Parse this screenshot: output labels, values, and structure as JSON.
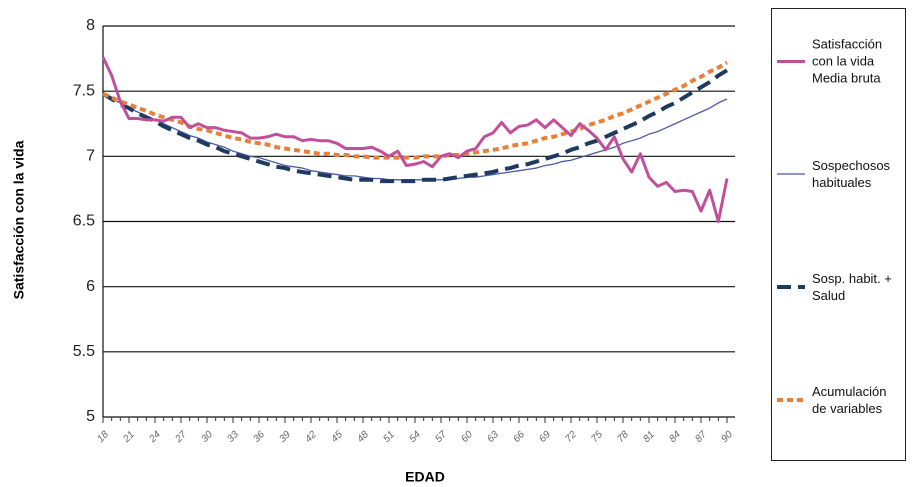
{
  "chart_data": {
    "type": "line",
    "x_label": "EDAD",
    "y_label": "Satisfacción con la vida",
    "x": [
      18,
      19,
      20,
      21,
      22,
      23,
      24,
      25,
      26,
      27,
      28,
      29,
      30,
      31,
      32,
      33,
      34,
      35,
      36,
      37,
      38,
      39,
      40,
      41,
      42,
      43,
      44,
      45,
      46,
      47,
      48,
      49,
      50,
      51,
      52,
      53,
      54,
      55,
      56,
      57,
      58,
      59,
      60,
      61,
      62,
      63,
      64,
      65,
      66,
      67,
      68,
      69,
      70,
      71,
      72,
      73,
      74,
      75,
      76,
      77,
      78,
      79,
      80,
      81,
      82,
      83,
      84,
      85,
      86,
      87,
      88,
      89,
      90
    ],
    "xlim": [
      18,
      90
    ],
    "xticks": [
      18,
      21,
      24,
      27,
      30,
      33,
      36,
      39,
      42,
      45,
      48,
      51,
      54,
      57,
      60,
      63,
      66,
      69,
      72,
      75,
      78,
      81,
      84,
      87,
      90
    ],
    "ylim": [
      5,
      8
    ],
    "yticks": [
      5,
      5.5,
      6,
      6.5,
      7,
      7.5,
      8
    ],
    "grid": true,
    "legend": "right",
    "series": [
      {
        "name": "Satisfacción con la vida Media bruta",
        "color": "#c0509a",
        "line_style": "solid",
        "values": [
          7.76,
          7.62,
          7.42,
          7.29,
          7.29,
          7.28,
          7.28,
          7.27,
          7.3,
          7.3,
          7.22,
          7.25,
          7.22,
          7.22,
          7.2,
          7.19,
          7.18,
          7.14,
          7.14,
          7.15,
          7.17,
          7.15,
          7.15,
          7.12,
          7.13,
          7.12,
          7.12,
          7.1,
          7.06,
          7.06,
          7.06,
          7.07,
          7.04,
          7.0,
          7.04,
          6.93,
          6.94,
          6.96,
          6.92,
          7.0,
          7.02,
          6.99,
          7.04,
          7.06,
          7.15,
          7.18,
          7.26,
          7.18,
          7.23,
          7.24,
          7.28,
          7.22,
          7.28,
          7.22,
          7.16,
          7.25,
          7.2,
          7.14,
          7.05,
          7.15,
          6.98,
          6.88,
          7.02,
          6.84,
          6.77,
          6.8,
          6.73,
          6.74,
          6.73,
          6.58,
          6.74,
          6.5,
          6.83
        ]
      },
      {
        "name": "Sospechosos habituales",
        "color": "#4b5aa6",
        "line_style": "solid",
        "values": [
          7.48,
          7.44,
          7.41,
          7.37,
          7.34,
          7.31,
          7.28,
          7.25,
          7.22,
          7.19,
          7.16,
          7.14,
          7.11,
          7.09,
          7.07,
          7.04,
          7.02,
          7.0,
          6.99,
          6.97,
          6.95,
          6.93,
          6.92,
          6.91,
          6.89,
          6.88,
          6.87,
          6.86,
          6.85,
          6.85,
          6.84,
          6.83,
          6.83,
          6.82,
          6.82,
          6.82,
          6.82,
          6.82,
          6.82,
          6.82,
          6.83,
          6.83,
          6.84,
          6.84,
          6.85,
          6.86,
          6.87,
          6.88,
          6.89,
          6.9,
          6.91,
          6.93,
          6.94,
          6.96,
          6.97,
          6.99,
          7.01,
          7.03,
          7.05,
          7.07,
          7.1,
          7.12,
          7.14,
          7.17,
          7.19,
          7.22,
          7.25,
          7.28,
          7.31,
          7.34,
          7.37,
          7.41,
          7.44
        ]
      },
      {
        "name": "Sosp. habit. + Salud",
        "color": "#1f3a60",
        "line_style": "dashed",
        "values": [
          7.48,
          7.44,
          7.4,
          7.37,
          7.33,
          7.3,
          7.27,
          7.23,
          7.2,
          7.17,
          7.14,
          7.12,
          7.09,
          7.07,
          7.04,
          7.02,
          7.0,
          6.98,
          6.96,
          6.94,
          6.92,
          6.91,
          6.89,
          6.88,
          6.87,
          6.86,
          6.85,
          6.84,
          6.83,
          6.82,
          6.82,
          6.82,
          6.81,
          6.81,
          6.81,
          6.81,
          6.81,
          6.82,
          6.82,
          6.82,
          6.83,
          6.84,
          6.85,
          6.86,
          6.87,
          6.88,
          6.9,
          6.91,
          6.93,
          6.94,
          6.96,
          6.98,
          7.0,
          7.02,
          7.05,
          7.07,
          7.1,
          7.12,
          7.15,
          7.18,
          7.21,
          7.24,
          7.27,
          7.31,
          7.34,
          7.38,
          7.41,
          7.45,
          7.49,
          7.53,
          7.57,
          7.62,
          7.66
        ]
      },
      {
        "name": "Acumulación de variables",
        "color": "#e8803a",
        "line_style": "dotted",
        "values": [
          7.48,
          7.45,
          7.42,
          7.4,
          7.37,
          7.35,
          7.32,
          7.3,
          7.28,
          7.26,
          7.23,
          7.21,
          7.2,
          7.18,
          7.16,
          7.14,
          7.13,
          7.11,
          7.1,
          7.09,
          7.07,
          7.06,
          7.05,
          7.04,
          7.03,
          7.02,
          7.02,
          7.01,
          7.01,
          7.0,
          7.0,
          6.99,
          6.99,
          6.99,
          6.99,
          6.99,
          6.99,
          7.0,
          7.0,
          7.0,
          7.01,
          7.01,
          7.02,
          7.03,
          7.04,
          7.05,
          7.06,
          7.08,
          7.09,
          7.1,
          7.12,
          7.14,
          7.15,
          7.17,
          7.19,
          7.21,
          7.24,
          7.26,
          7.28,
          7.31,
          7.33,
          7.36,
          7.39,
          7.42,
          7.45,
          7.48,
          7.51,
          7.54,
          7.58,
          7.61,
          7.65,
          7.68,
          7.72
        ]
      }
    ]
  }
}
